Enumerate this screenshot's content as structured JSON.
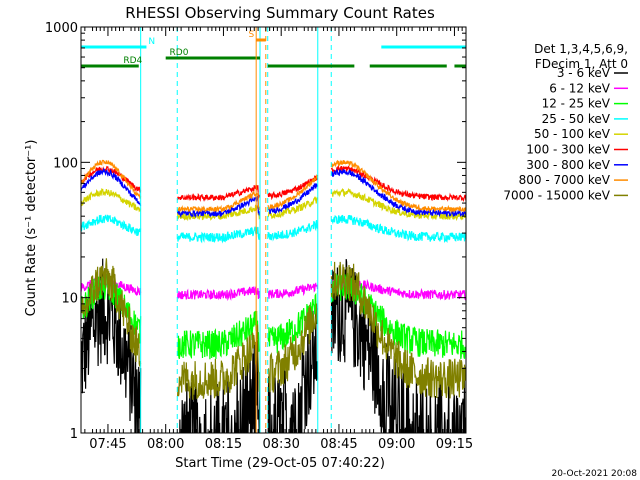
{
  "chart_data": {
    "type": "line",
    "title": "RHESSI Observing Summary Count Rates",
    "xlabel": "Start Time (29-Oct-05 07:40:22)",
    "ylabel": "Count Rate (s⁻¹ detector⁻¹)",
    "yscale": "log",
    "ylim": [
      1,
      1000
    ],
    "y_ticks": [
      {
        "value": 1,
        "label": "1"
      },
      {
        "value": 10,
        "label": "10"
      },
      {
        "value": 100,
        "label": "100"
      },
      {
        "value": 1000,
        "label": "1000"
      }
    ],
    "x_range_min": [
      -2,
      98
    ],
    "x_ticks": [
      {
        "min": 5,
        "label": "07:45"
      },
      {
        "min": 20,
        "label": "08:00"
      },
      {
        "min": 35,
        "label": "08:15"
      },
      {
        "min": 50,
        "label": "08:30"
      },
      {
        "min": 65,
        "label": "08:45"
      },
      {
        "min": 80,
        "label": "09:00"
      },
      {
        "min": 95,
        "label": "09:15"
      }
    ],
    "legend_header": [
      "Det 1,3,4,5,6,9,",
      "FDecim 1, Att 0"
    ],
    "legend_placement": "right",
    "series": [
      {
        "name": "3 - 6 keV",
        "color": "#000000"
      },
      {
        "name": "6 - 12 keV",
        "color": "#ff00ff"
      },
      {
        "name": "12 - 25 keV",
        "color": "#00ff00"
      },
      {
        "name": "25 - 50 keV",
        "color": "#00ffff"
      },
      {
        "name": "50 - 100 keV",
        "color": "#d4d400"
      },
      {
        "name": "100 - 300 keV",
        "color": "#ff0000"
      },
      {
        "name": "300 - 800 keV",
        "color": "#0000ff"
      },
      {
        "name": "800 - 7000 keV",
        "color": "#ff8c00"
      },
      {
        "name": "7000 - 15000 keV",
        "color": "#808000"
      }
    ],
    "gaps_min": [
      [
        13.5,
        23
      ],
      [
        44.5,
        46.5
      ],
      [
        59.5,
        63
      ]
    ],
    "flags": [
      {
        "name": "N",
        "color": "#00ffff",
        "intervals": [
          [
            -2,
            15
          ],
          [
            76,
            98
          ]
        ]
      },
      {
        "name": "RD0",
        "color": "#008000",
        "intervals": [
          [
            20,
            44.5
          ]
        ]
      },
      {
        "name": "RD4",
        "color": "#008000",
        "intervals": [
          [
            -2,
            13
          ],
          [
            46.5,
            69
          ],
          [
            73,
            93
          ],
          [
            95,
            98
          ]
        ]
      },
      {
        "name": "S",
        "color": "#ff8c00",
        "intervals": [
          [
            43.5,
            46
          ]
        ]
      }
    ],
    "footer_date": "20-Oct-2021 20:08"
  }
}
